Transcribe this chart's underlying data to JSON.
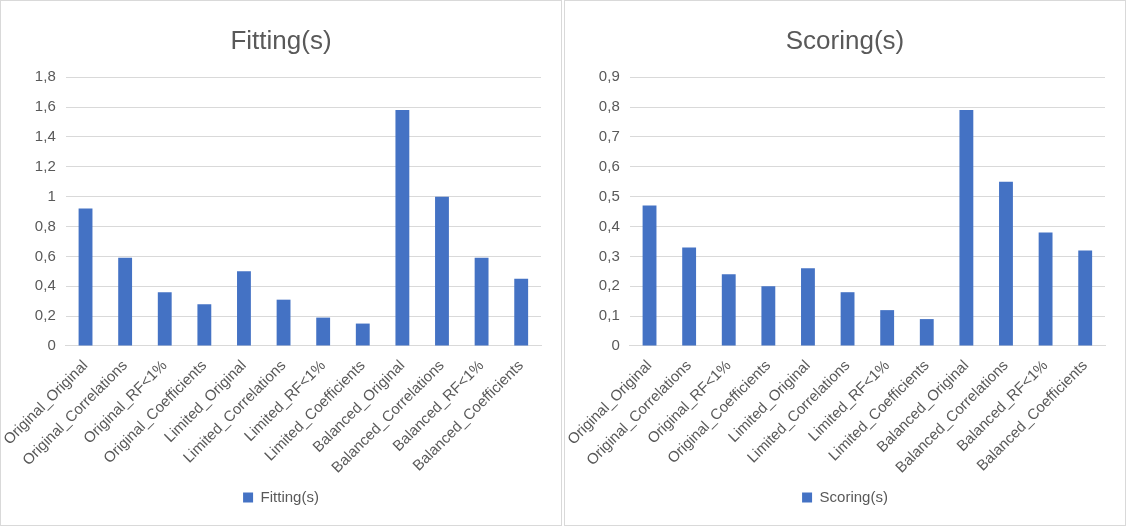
{
  "chart_data": [
    {
      "type": "bar",
      "title": "Fitting(s)",
      "categories": [
        "Original_Original",
        "Original_Correlations",
        "Original_RF<1%",
        "Original_Coefficients",
        "Limited_Original",
        "Limited_Correlations",
        "Limited_RF<1%",
        "Limited_Coefficients",
        "Balanced_Original",
        "Balanced_Correlations",
        "Balanced_RF<1%",
        "Balanced_Coefficients"
      ],
      "series": [
        {
          "name": "Fitting(s)",
          "color": "#4472c4",
          "values": [
            0.92,
            0.59,
            0.36,
            0.28,
            0.5,
            0.31,
            0.19,
            0.15,
            1.58,
            1.0,
            0.59,
            0.45
          ]
        }
      ],
      "ylim": [
        0,
        1.8
      ],
      "yticks": [
        {
          "value": 0,
          "label": "0"
        },
        {
          "value": 0.2,
          "label": "0,2"
        },
        {
          "value": 0.4,
          "label": "0,4"
        },
        {
          "value": 0.6,
          "label": "0,6"
        },
        {
          "value": 0.8,
          "label": "0,8"
        },
        {
          "value": 1,
          "label": "1"
        },
        {
          "value": 1.2,
          "label": "1,2"
        },
        {
          "value": 1.4,
          "label": "1,4"
        },
        {
          "value": 1.6,
          "label": "1,6"
        },
        {
          "value": 1.8,
          "label": "1,8"
        }
      ],
      "grid": "y",
      "legend": "bottom"
    },
    {
      "type": "bar",
      "title": "Scoring(s)",
      "categories": [
        "Original_Original",
        "Original_Correlations",
        "Original_RF<1%",
        "Original_Coefficients",
        "Limited_Original",
        "Limited_Correlations",
        "Limited_RF<1%",
        "Limited_Coefficients",
        "Balanced_Original",
        "Balanced_Correlations",
        "Balanced_RF<1%",
        "Balanced_Coefficients"
      ],
      "series": [
        {
          "name": "Scoring(s)",
          "color": "#4472c4",
          "values": [
            0.47,
            0.33,
            0.24,
            0.2,
            0.26,
            0.18,
            0.12,
            0.09,
            0.79,
            0.55,
            0.38,
            0.32
          ]
        }
      ],
      "ylim": [
        0,
        0.9
      ],
      "yticks": [
        {
          "value": 0,
          "label": "0"
        },
        {
          "value": 0.1,
          "label": "0,1"
        },
        {
          "value": 0.2,
          "label": "0,2"
        },
        {
          "value": 0.3,
          "label": "0,3"
        },
        {
          "value": 0.4,
          "label": "0,4"
        },
        {
          "value": 0.5,
          "label": "0,5"
        },
        {
          "value": 0.6,
          "label": "0,6"
        },
        {
          "value": 0.7,
          "label": "0,7"
        },
        {
          "value": 0.8,
          "label": "0,8"
        },
        {
          "value": 0.9,
          "label": "0,9"
        }
      ],
      "grid": "y",
      "legend": "bottom"
    }
  ]
}
